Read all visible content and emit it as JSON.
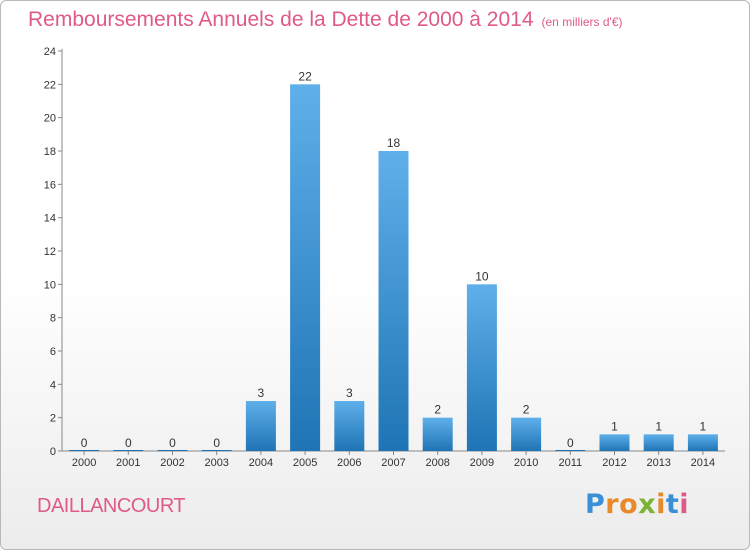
{
  "header": {
    "title": "Remboursements Annuels de la Dette de 2000 à 2014",
    "unit": "(en milliers d'€)"
  },
  "commune": "DAILLANCOURT",
  "logo": {
    "text": "Proxiti",
    "letters": [
      "P",
      "r",
      "o",
      "x",
      "i",
      "t",
      "i"
    ],
    "colors": [
      "#3a8fd6",
      "#e8892a",
      "#e8892a",
      "#7ab432",
      "#e8892a",
      "#3a8fd6",
      "#e05a86"
    ]
  },
  "colors": {
    "bar_top": "#5fb0ea",
    "bar_bottom": "#1f74b5",
    "title": "#e05a86"
  },
  "chart_data": {
    "type": "bar",
    "title": "Remboursements Annuels de la Dette de 2000 à 2014",
    "xlabel": "",
    "ylabel": "",
    "categories": [
      "2000",
      "2001",
      "2002",
      "2003",
      "2004",
      "2005",
      "2006",
      "2007",
      "2008",
      "2009",
      "2010",
      "2011",
      "2012",
      "2013",
      "2014"
    ],
    "values": [
      0,
      0,
      0,
      0,
      3,
      22,
      3,
      18,
      2,
      10,
      2,
      0,
      1,
      1,
      1
    ],
    "ylim": [
      0,
      24
    ],
    "yticks": [
      0,
      2,
      4,
      6,
      8,
      10,
      12,
      14,
      16,
      18,
      20,
      22,
      24
    ],
    "grid": false
  }
}
